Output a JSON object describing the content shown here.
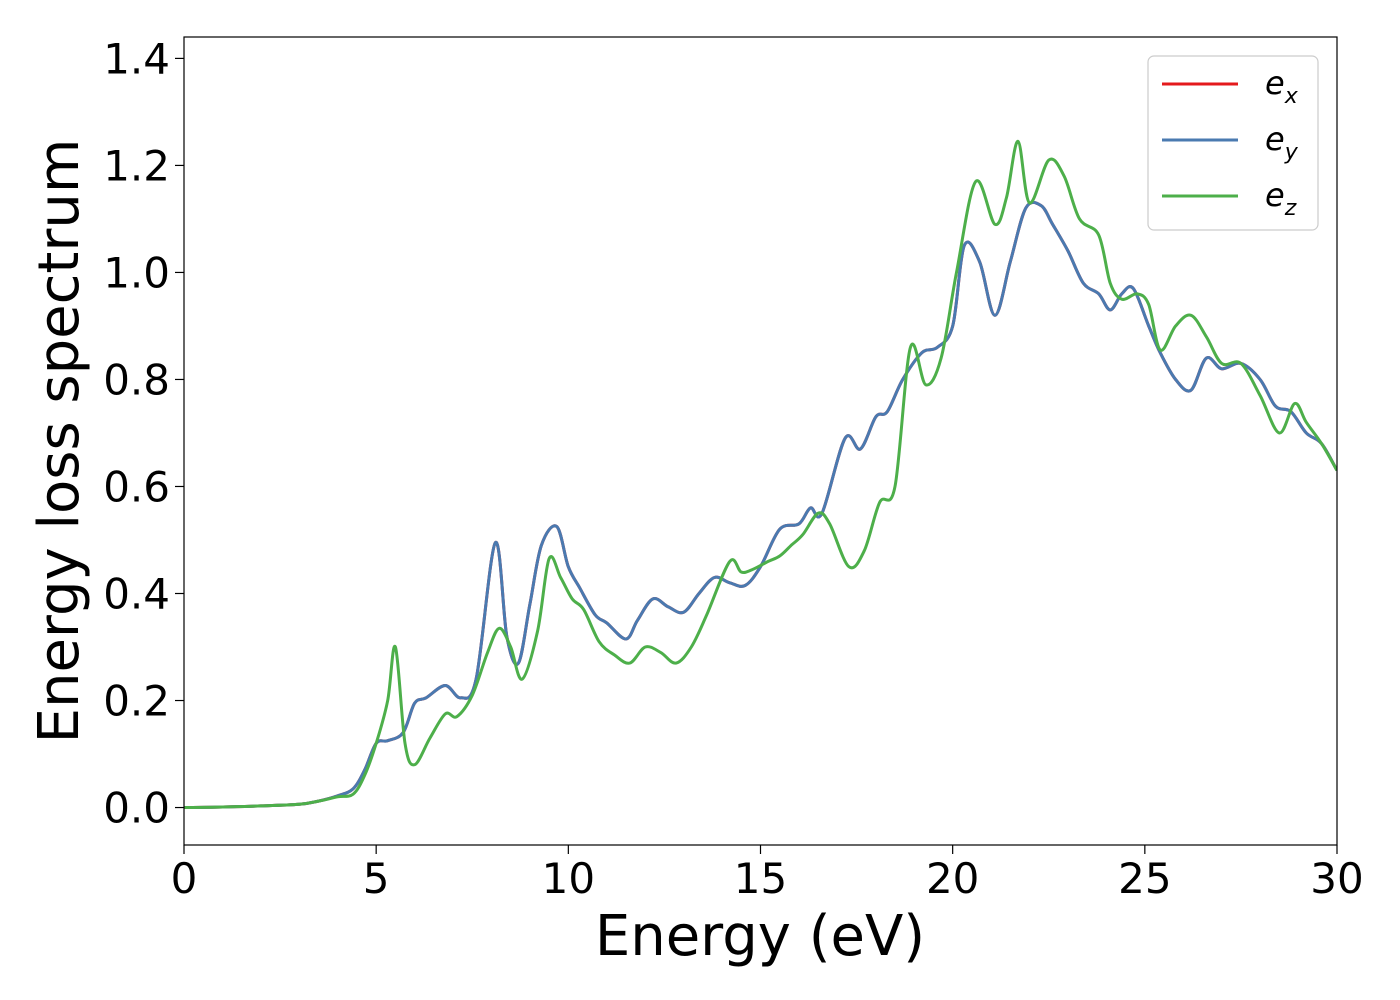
{
  "chart_data": {
    "type": "line",
    "title": "",
    "xlabel": "Energy (eV)",
    "ylabel": "Energy loss spectrum",
    "xlim": [
      0,
      30
    ],
    "ylim": [
      -0.07,
      1.44
    ],
    "xticks": [
      0,
      5,
      10,
      15,
      20,
      25,
      30
    ],
    "xtick_labels": [
      "0",
      "5",
      "10",
      "15",
      "20",
      "25",
      "30"
    ],
    "yticks": [
      0.0,
      0.2,
      0.4,
      0.6,
      0.8,
      1.0,
      1.2,
      1.4
    ],
    "ytick_labels": [
      "0.0",
      "0.2",
      "0.4",
      "0.6",
      "0.8",
      "1.0",
      "1.2",
      "1.4"
    ],
    "grid": false,
    "legend": {
      "position": "top-right"
    },
    "series": [
      {
        "name": "e_x",
        "label_base": "e",
        "label_sub": "x",
        "color": "#e41a1c",
        "x": [
          0,
          1,
          2,
          3,
          3.5,
          4,
          4.4,
          4.7,
          5,
          5.3,
          5.7,
          6,
          6.3,
          6.8,
          7.2,
          7.6,
          8.1,
          8.4,
          8.7,
          9,
          9.3,
          9.7,
          10,
          10.3,
          10.7,
          11,
          11.5,
          11.8,
          12.2,
          12.6,
          13,
          13.4,
          13.8,
          14.2,
          14.6,
          15,
          15.5,
          16,
          16.3,
          16.6,
          17.2,
          17.6,
          18,
          18.3,
          18.7,
          19.2,
          19.6,
          20,
          20.3,
          20.7,
          21.1,
          21.5,
          21.9,
          22.3,
          22.6,
          23,
          23.4,
          23.8,
          24.1,
          24.4,
          24.7,
          25.1,
          25.4,
          25.8,
          26.2,
          26.6,
          27,
          27.5,
          28,
          28.4,
          28.8,
          29.2,
          29.6,
          30
        ],
        "y": [
          0,
          0.001,
          0.003,
          0.006,
          0.012,
          0.022,
          0.035,
          0.07,
          0.12,
          0.125,
          0.14,
          0.195,
          0.205,
          0.228,
          0.205,
          0.24,
          0.495,
          0.32,
          0.27,
          0.38,
          0.49,
          0.525,
          0.45,
          0.41,
          0.36,
          0.345,
          0.315,
          0.35,
          0.39,
          0.375,
          0.365,
          0.4,
          0.43,
          0.42,
          0.415,
          0.45,
          0.52,
          0.53,
          0.56,
          0.55,
          0.69,
          0.67,
          0.73,
          0.74,
          0.8,
          0.85,
          0.86,
          0.9,
          1.05,
          1.02,
          0.92,
          1.02,
          1.12,
          1.125,
          1.09,
          1.04,
          0.98,
          0.96,
          0.93,
          0.96,
          0.97,
          0.9,
          0.85,
          0.8,
          0.78,
          0.84,
          0.82,
          0.83,
          0.8,
          0.75,
          0.74,
          0.7,
          0.68,
          0.63
        ]
      },
      {
        "name": "e_y",
        "label_base": "e",
        "label_sub": "y",
        "color": "#4a7ab0",
        "x": [
          0,
          1,
          2,
          3,
          3.5,
          4,
          4.4,
          4.7,
          5,
          5.3,
          5.7,
          6,
          6.3,
          6.8,
          7.2,
          7.6,
          8.1,
          8.4,
          8.7,
          9,
          9.3,
          9.7,
          10,
          10.3,
          10.7,
          11,
          11.5,
          11.8,
          12.2,
          12.6,
          13,
          13.4,
          13.8,
          14.2,
          14.6,
          15,
          15.5,
          16,
          16.3,
          16.6,
          17.2,
          17.6,
          18,
          18.3,
          18.7,
          19.2,
          19.6,
          20,
          20.3,
          20.7,
          21.1,
          21.5,
          21.9,
          22.3,
          22.6,
          23,
          23.4,
          23.8,
          24.1,
          24.4,
          24.7,
          25.1,
          25.4,
          25.8,
          26.2,
          26.6,
          27,
          27.5,
          28,
          28.4,
          28.8,
          29.2,
          29.6,
          30
        ],
        "y": [
          0,
          0.001,
          0.003,
          0.006,
          0.012,
          0.022,
          0.035,
          0.07,
          0.12,
          0.125,
          0.14,
          0.195,
          0.205,
          0.228,
          0.205,
          0.24,
          0.495,
          0.32,
          0.27,
          0.38,
          0.49,
          0.525,
          0.45,
          0.41,
          0.36,
          0.345,
          0.315,
          0.35,
          0.39,
          0.375,
          0.365,
          0.4,
          0.43,
          0.42,
          0.415,
          0.45,
          0.52,
          0.53,
          0.56,
          0.55,
          0.69,
          0.67,
          0.73,
          0.74,
          0.8,
          0.85,
          0.86,
          0.9,
          1.05,
          1.02,
          0.92,
          1.02,
          1.12,
          1.125,
          1.09,
          1.04,
          0.98,
          0.96,
          0.93,
          0.96,
          0.97,
          0.9,
          0.85,
          0.8,
          0.78,
          0.84,
          0.82,
          0.83,
          0.8,
          0.75,
          0.74,
          0.7,
          0.68,
          0.63
        ]
      },
      {
        "name": "e_z",
        "label_base": "e",
        "label_sub": "z",
        "color": "#4daf4a",
        "x": [
          0,
          1,
          2,
          3,
          3.5,
          4,
          4.4,
          4.7,
          5,
          5.3,
          5.5,
          5.75,
          6,
          6.4,
          6.8,
          7.1,
          7.5,
          7.9,
          8.2,
          8.5,
          8.8,
          9.2,
          9.5,
          9.8,
          10.1,
          10.4,
          10.8,
          11.2,
          11.6,
          12,
          12.4,
          12.8,
          13.2,
          13.6,
          14.2,
          14.5,
          14.8,
          15.2,
          15.5,
          15.8,
          16.1,
          16.5,
          16.8,
          17.3,
          17.7,
          18.1,
          18.5,
          18.9,
          19.3,
          19.7,
          20.1,
          20.6,
          21.1,
          21.4,
          21.7,
          22,
          22.5,
          22.9,
          23.3,
          23.8,
          24.1,
          24.4,
          24.8,
          25.1,
          25.4,
          25.8,
          26.2,
          26.6,
          27,
          27.5,
          28,
          28.5,
          28.9,
          29.2,
          29.6,
          30
        ],
        "y": [
          0,
          0.001,
          0.003,
          0.006,
          0.012,
          0.02,
          0.025,
          0.06,
          0.12,
          0.2,
          0.3,
          0.12,
          0.08,
          0.13,
          0.175,
          0.17,
          0.21,
          0.29,
          0.335,
          0.3,
          0.24,
          0.33,
          0.465,
          0.43,
          0.39,
          0.37,
          0.31,
          0.285,
          0.27,
          0.3,
          0.29,
          0.27,
          0.3,
          0.36,
          0.46,
          0.44,
          0.445,
          0.46,
          0.47,
          0.49,
          0.51,
          0.55,
          0.53,
          0.45,
          0.48,
          0.57,
          0.6,
          0.86,
          0.79,
          0.84,
          1.0,
          1.17,
          1.09,
          1.14,
          1.245,
          1.13,
          1.21,
          1.18,
          1.1,
          1.07,
          0.98,
          0.95,
          0.96,
          0.94,
          0.855,
          0.9,
          0.92,
          0.88,
          0.83,
          0.83,
          0.77,
          0.7,
          0.755,
          0.72,
          0.68,
          0.63
        ]
      }
    ]
  }
}
